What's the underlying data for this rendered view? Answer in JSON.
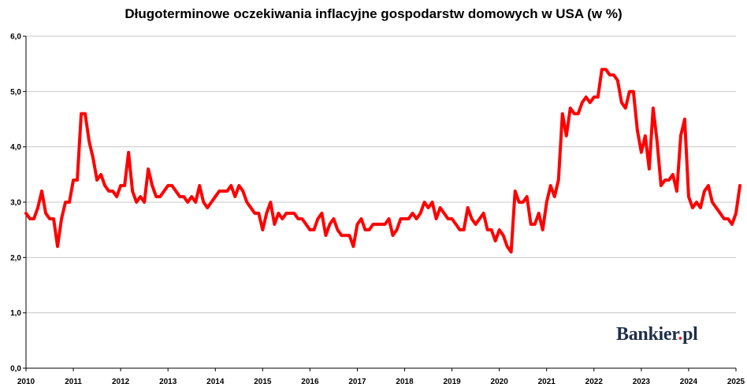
{
  "chart_data": {
    "type": "line",
    "title": "Długoterminowe oczekiwania inflacyjne gospodarstw domowych w USA (w %)",
    "xlabel": "",
    "ylabel": "",
    "ylim": [
      0,
      6
    ],
    "xlim": [
      2010,
      2025
    ],
    "grid": "horizontal",
    "y_ticks": [
      "0,0",
      "1,0",
      "2,0",
      "3,0",
      "4,0",
      "5,0",
      "6,0"
    ],
    "x_ticks": [
      "2010",
      "2011",
      "2012",
      "2013",
      "2014",
      "2015",
      "2016",
      "2017",
      "2018",
      "2019",
      "2020",
      "2021",
      "2022",
      "2023",
      "2024",
      "2025"
    ],
    "series": [
      {
        "color": "#ff0000",
        "x_start": 2010,
        "step": "monthly",
        "values": [
          2.8,
          2.7,
          2.7,
          2.9,
          3.2,
          2.8,
          2.7,
          2.7,
          2.2,
          2.7,
          3.0,
          3.0,
          3.4,
          3.4,
          4.6,
          4.6,
          4.1,
          3.8,
          3.4,
          3.5,
          3.3,
          3.2,
          3.2,
          3.1,
          3.3,
          3.3,
          3.9,
          3.2,
          3.0,
          3.1,
          3.0,
          3.6,
          3.3,
          3.1,
          3.1,
          3.2,
          3.3,
          3.3,
          3.2,
          3.1,
          3.1,
          3.0,
          3.1,
          3.0,
          3.3,
          3.0,
          2.9,
          3.0,
          3.1,
          3.2,
          3.2,
          3.2,
          3.3,
          3.1,
          3.3,
          3.2,
          3.0,
          2.9,
          2.8,
          2.8,
          2.5,
          2.8,
          3.0,
          2.6,
          2.8,
          2.7,
          2.8,
          2.8,
          2.8,
          2.7,
          2.7,
          2.6,
          2.5,
          2.5,
          2.7,
          2.8,
          2.4,
          2.6,
          2.7,
          2.5,
          2.4,
          2.4,
          2.4,
          2.2,
          2.6,
          2.7,
          2.5,
          2.5,
          2.6,
          2.6,
          2.6,
          2.6,
          2.7,
          2.4,
          2.5,
          2.7,
          2.7,
          2.7,
          2.8,
          2.7,
          2.8,
          3.0,
          2.9,
          3.0,
          2.7,
          2.9,
          2.8,
          2.7,
          2.7,
          2.6,
          2.5,
          2.5,
          2.9,
          2.7,
          2.6,
          2.7,
          2.8,
          2.5,
          2.5,
          2.3,
          2.5,
          2.4,
          2.2,
          2.1,
          3.2,
          3.0,
          3.0,
          3.1,
          2.6,
          2.6,
          2.8,
          2.5,
          3.0,
          3.3,
          3.1,
          3.4,
          4.6,
          4.2,
          4.7,
          4.6,
          4.6,
          4.8,
          4.9,
          4.8,
          4.9,
          4.9,
          5.4,
          5.4,
          5.3,
          5.3,
          5.2,
          4.8,
          4.7,
          5.0,
          5.0,
          4.3,
          3.9,
          4.2,
          3.6,
          4.7,
          4.1,
          3.3,
          3.4,
          3.4,
          3.5,
          3.2,
          4.2,
          4.5,
          3.1,
          2.9,
          3.0,
          2.9,
          3.2,
          3.3,
          3.0,
          2.9,
          2.8,
          2.7,
          2.7,
          2.6,
          2.8,
          3.3
        ]
      }
    ]
  },
  "logo": {
    "text_main": "Bankier",
    "text_dot": ".",
    "text_tld": "pl"
  }
}
